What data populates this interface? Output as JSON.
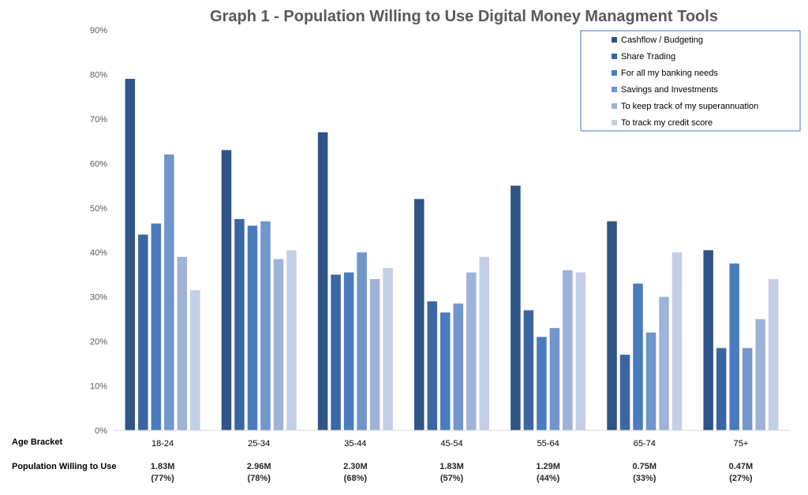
{
  "chart_data": {
    "type": "bar",
    "title": "Graph 1 - Population Willing to Use Digital Money Managment Tools",
    "categories": [
      "18-24",
      "25-34",
      "35-44",
      "45-54",
      "55-64",
      "65-74",
      "75+"
    ],
    "ylim": [
      0,
      90
    ],
    "y_ticks": [
      "0%",
      "10%",
      "20%",
      "30%",
      "40%",
      "50%",
      "60%",
      "70%",
      "80%",
      "90%"
    ],
    "y_tick_values": [
      0,
      10,
      20,
      30,
      40,
      50,
      60,
      70,
      80,
      90
    ],
    "grid": false,
    "legend_position": "top-right",
    "series": [
      {
        "name": "Cashflow / Budgeting",
        "color": "#2f5486",
        "values": [
          79,
          63,
          67,
          52,
          55,
          47,
          40.5
        ]
      },
      {
        "name": "Share Trading",
        "color": "#3a66a3",
        "values": [
          44,
          47.5,
          35,
          29,
          27,
          17,
          18.5
        ]
      },
      {
        "name": "For all my banking needs",
        "color": "#4a7bbf",
        "values": [
          46.5,
          46,
          35.5,
          26.5,
          21,
          33,
          37.5
        ]
      },
      {
        "name": "Savings and Investments",
        "color": "#7196cc",
        "values": [
          62,
          47,
          40,
          28.5,
          23,
          22,
          18.5
        ]
      },
      {
        "name": "To keep track of my superannuation",
        "color": "#9fb3d8",
        "values": [
          39,
          38.5,
          34,
          35.5,
          36,
          30,
          25
        ]
      },
      {
        "name": "To track my credit score",
        "color": "#c3cfe6",
        "values": [
          31.5,
          40.5,
          36.5,
          39,
          35.5,
          40,
          34
        ]
      }
    ],
    "row_labels": {
      "age_bracket": "Age Bracket",
      "population": "Population Willing to Use"
    },
    "population": [
      {
        "value": "1.83M",
        "pct": "(77%)"
      },
      {
        "value": "2.96M",
        "pct": "(78%)"
      },
      {
        "value": "2.30M",
        "pct": "(68%)"
      },
      {
        "value": "1.83M",
        "pct": "(57%)"
      },
      {
        "value": "1.29M",
        "pct": "(44%)"
      },
      {
        "value": "0.75M",
        "pct": "(33%)"
      },
      {
        "value": "0.47M",
        "pct": "(27%)"
      }
    ]
  }
}
